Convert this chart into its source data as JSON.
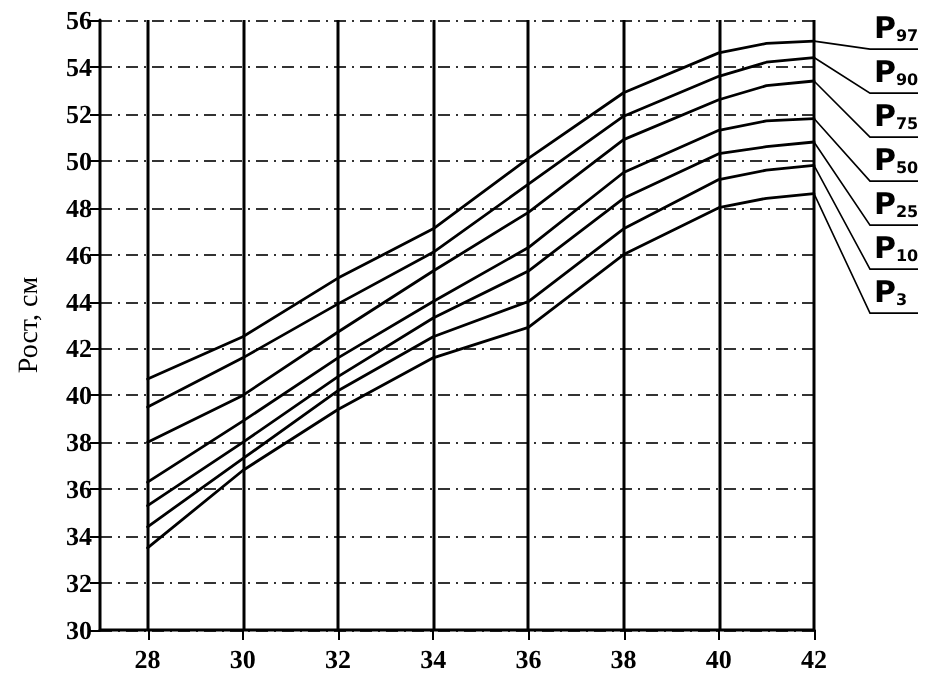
{
  "chart_data": {
    "type": "line",
    "ylabel": "Рост, см",
    "x": [
      28,
      30,
      32,
      34,
      36,
      38,
      40,
      41,
      42
    ],
    "xlim": [
      27,
      42
    ],
    "xticks": [
      28,
      30,
      32,
      34,
      36,
      38,
      40,
      42
    ],
    "ylim": [
      30,
      56
    ],
    "yticks": [
      30,
      32,
      34,
      36,
      38,
      40,
      42,
      44,
      46,
      48,
      50,
      52,
      54,
      56
    ],
    "grid": true,
    "legend": false,
    "marker": "none",
    "line_style": "solid",
    "series": [
      {
        "name": "P$_{97}$",
        "color": "#000000",
        "values": [
          40.7,
          42.5,
          45.0,
          47.1,
          50.1,
          52.9,
          54.6,
          55.0,
          55.1
        ]
      },
      {
        "name": "P$_{90}$",
        "color": "#000000",
        "values": [
          39.5,
          41.6,
          43.9,
          46.1,
          49.0,
          51.9,
          53.6,
          54.2,
          54.4
        ]
      },
      {
        "name": "P$_{75}$",
        "color": "#000000",
        "values": [
          38.0,
          40.0,
          42.7,
          45.3,
          47.8,
          50.9,
          52.6,
          53.2,
          53.4
        ]
      },
      {
        "name": "P$_{50}$",
        "color": "#000000",
        "values": [
          36.3,
          38.9,
          41.6,
          44.0,
          46.3,
          49.5,
          51.3,
          51.7,
          51.8
        ]
      },
      {
        "name": "P$_{25}$",
        "color": "#000000",
        "values": [
          35.3,
          38.0,
          40.8,
          43.3,
          45.3,
          48.4,
          50.3,
          50.6,
          50.8
        ]
      },
      {
        "name": "P$_{10}$",
        "color": "#000000",
        "values": [
          34.4,
          37.3,
          40.2,
          42.5,
          44.0,
          47.1,
          49.2,
          49.6,
          49.8
        ]
      },
      {
        "name": "P$_{3}$",
        "color": "#000000",
        "values": [
          33.5,
          36.8,
          39.4,
          41.6,
          42.9,
          46.0,
          48.0,
          48.4,
          48.6
        ]
      }
    ]
  }
}
